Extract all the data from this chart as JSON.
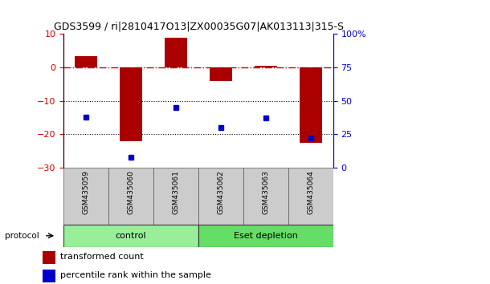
{
  "title": "GDS3599 / ri|2810417O13|ZX00035G07|AK013113|315-S",
  "samples": [
    "GSM435059",
    "GSM435060",
    "GSM435061",
    "GSM435062",
    "GSM435063",
    "GSM435064"
  ],
  "red_values": [
    3.5,
    -22.0,
    9.0,
    -4.0,
    0.5,
    -22.5
  ],
  "blue_values": [
    38,
    8,
    45,
    30,
    37,
    22
  ],
  "ylim_left": [
    -30,
    10
  ],
  "ylim_right": [
    0,
    100
  ],
  "yticks_left": [
    10,
    0,
    -10,
    -20,
    -30
  ],
  "yticks_right": [
    0,
    25,
    50,
    75,
    100
  ],
  "groups": [
    {
      "label": "control",
      "indices": [
        0,
        1,
        2
      ],
      "color": "#99EE99"
    },
    {
      "label": "Eset depletion",
      "indices": [
        3,
        4,
        5
      ],
      "color": "#66DD66"
    }
  ],
  "bar_color": "#AA0000",
  "dot_color": "#0000CC",
  "hline_color": "#CC0000",
  "dotted_lines": [
    -10,
    -20
  ],
  "legend_red_label": "transformed count",
  "legend_blue_label": "percentile rank within the sample",
  "protocol_label": "protocol",
  "background_color": "#ffffff",
  "bar_width": 0.5,
  "title_fontsize": 9
}
